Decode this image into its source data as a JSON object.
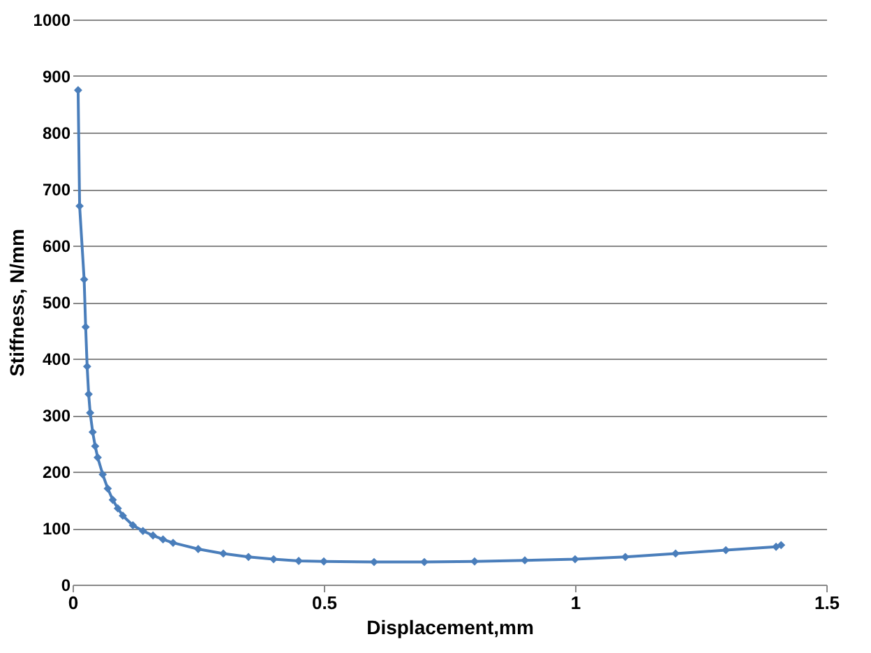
{
  "chart_data": {
    "type": "line",
    "xlabel": "Displacement,mm",
    "ylabel": "Stiffness, N/mm",
    "x": [
      0.011,
      0.014,
      0.023,
      0.026,
      0.029,
      0.032,
      0.035,
      0.04,
      0.045,
      0.05,
      0.06,
      0.07,
      0.08,
      0.09,
      0.1,
      0.12,
      0.14,
      0.16,
      0.18,
      0.2,
      0.25,
      0.3,
      0.35,
      0.4,
      0.45,
      0.5,
      0.6,
      0.7,
      0.8,
      0.9,
      1.0,
      1.1,
      1.2,
      1.3,
      1.4,
      1.41
    ],
    "series": [
      {
        "color": "#4a7ebb",
        "values": [
          875,
          670,
          540,
          456,
          386,
          337,
          304,
          270,
          245,
          225,
          195,
          170,
          150,
          135,
          122,
          105,
          95,
          87,
          80,
          74,
          63,
          55,
          49,
          45,
          42,
          41,
          40,
          40,
          41,
          43,
          45,
          49,
          55,
          61,
          67,
          70
        ]
      }
    ],
    "xlim": [
      0,
      1.5
    ],
    "xticks": [
      0,
      0.5,
      1,
      1.5
    ],
    "ylim": [
      0,
      1000
    ],
    "yticks": [
      0,
      100,
      200,
      300,
      400,
      500,
      600,
      700,
      800,
      900,
      1000
    ],
    "grid": "y",
    "marker": "diamond",
    "line_style": "solid"
  }
}
